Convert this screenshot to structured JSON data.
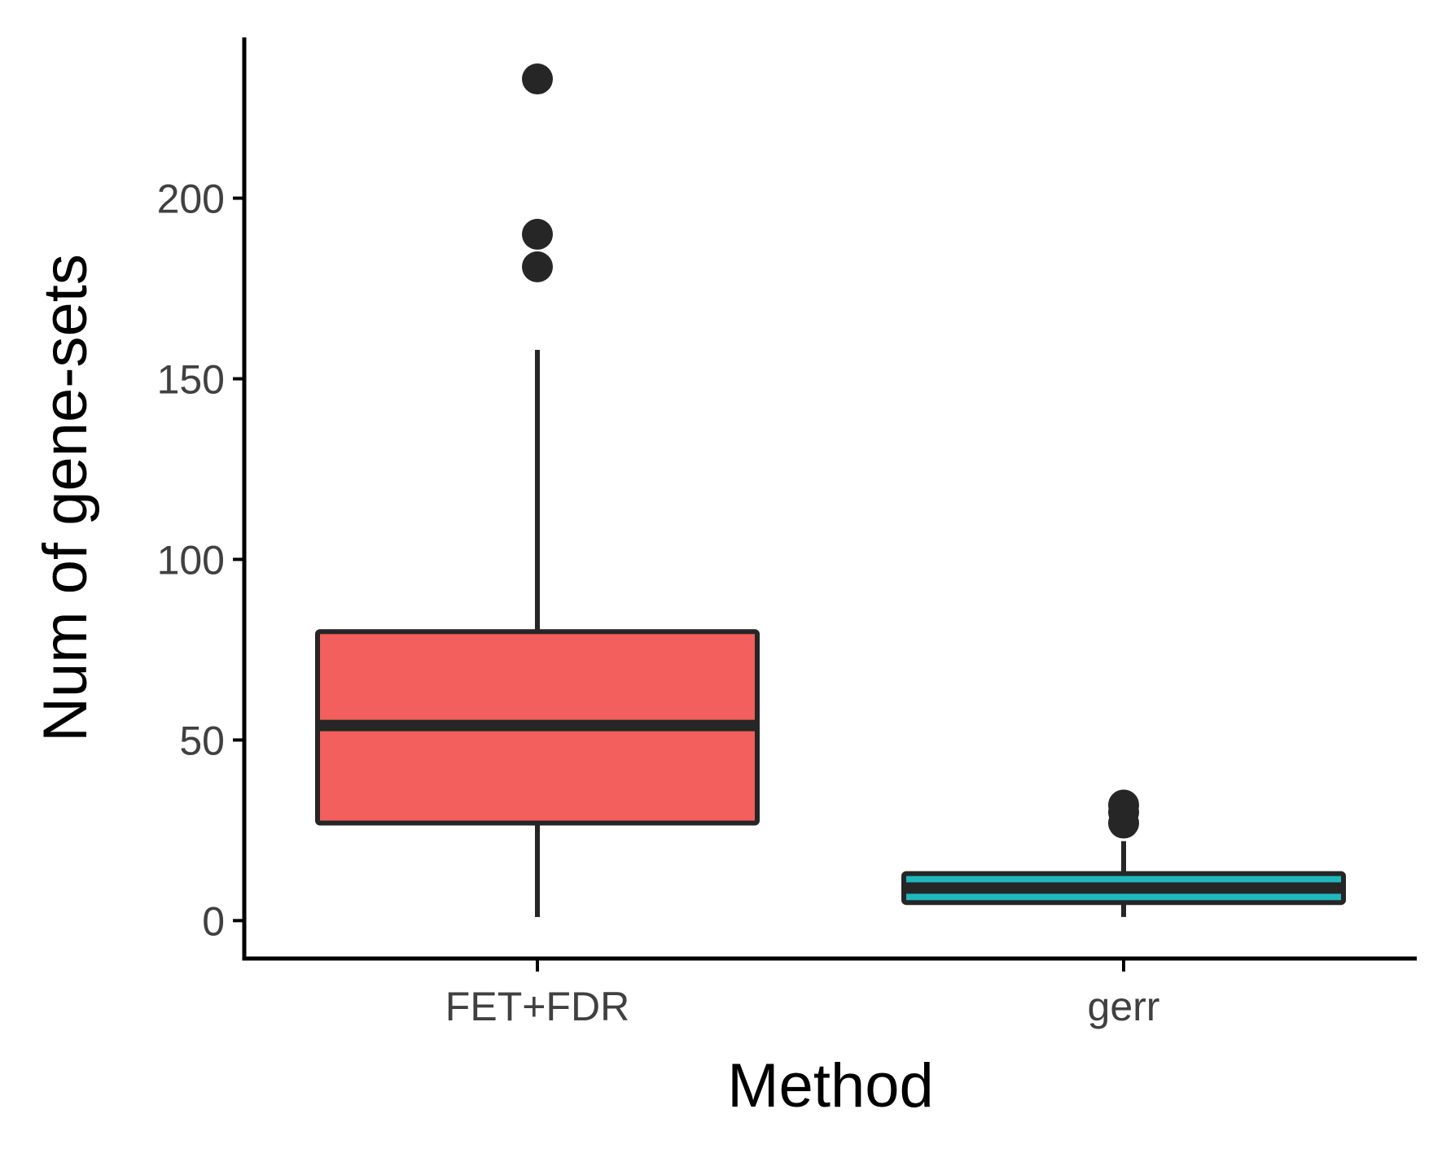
{
  "chart_data": {
    "type": "box",
    "xlabel": "Method",
    "ylabel": "Num of gene-sets",
    "ylim": [
      -10.5,
      244.5
    ],
    "yticks": [
      0,
      50,
      100,
      150,
      200
    ],
    "categories": [
      "FET+FDR",
      "gerr"
    ],
    "boxes": [
      {
        "category": "FET+FDR",
        "whisker_low": 1,
        "q1": 27,
        "median": 54,
        "q3": 80,
        "whisker_high": 158,
        "outliers": [
          181,
          190,
          233
        ],
        "fill": "#F25F5C"
      },
      {
        "category": "gerr",
        "whisker_low": 1,
        "q1": 5,
        "median": 9,
        "q3": 13,
        "whisker_high": 22,
        "outliers": [
          27,
          30,
          32
        ],
        "fill": "#1FB7BE"
      }
    ],
    "outline_color": "#262626",
    "legend": false,
    "grid": false
  }
}
